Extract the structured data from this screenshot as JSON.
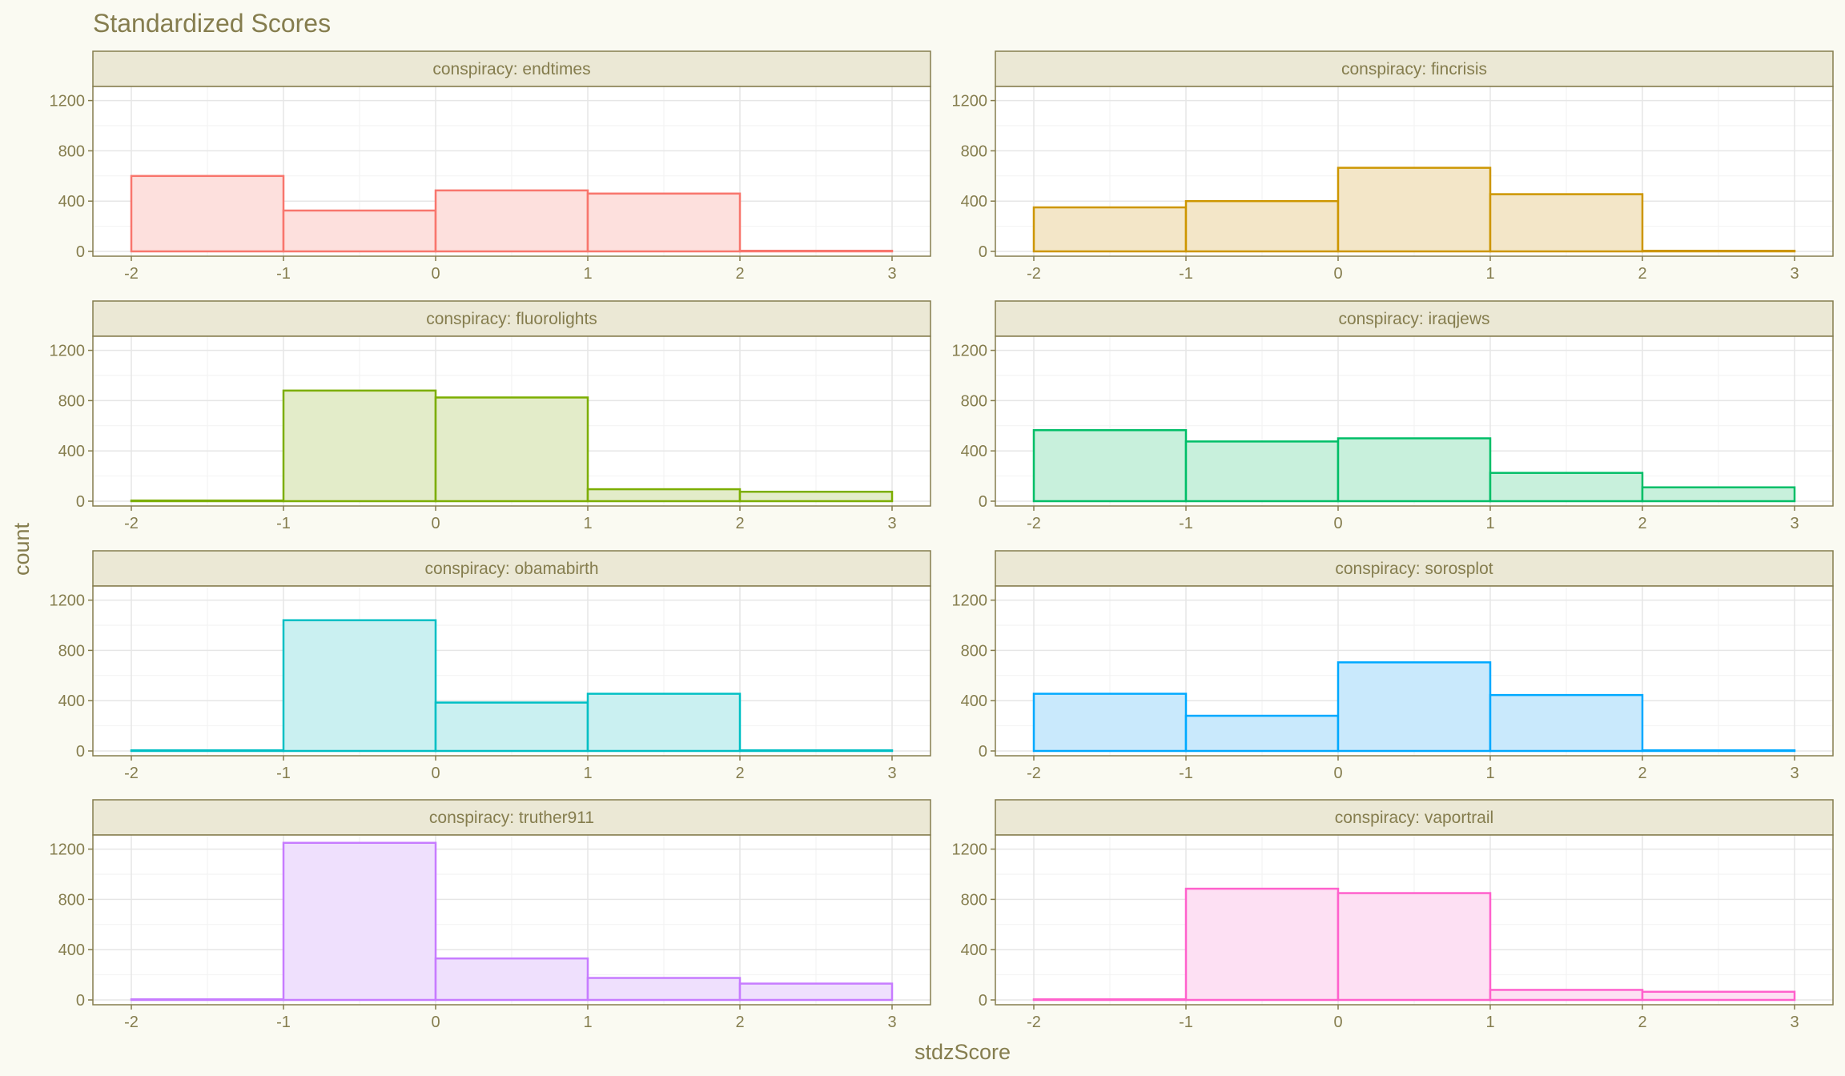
{
  "chart_data": {
    "type": "bar",
    "title": "Standardized Scores",
    "xlabel": "stdzScore",
    "ylabel": "count",
    "xlim": [
      -2,
      3
    ],
    "ylim": [
      0,
      1300
    ],
    "x_ticks": [
      "-2",
      "-1",
      "0",
      "1",
      "2",
      "3"
    ],
    "y_ticks": [
      "0",
      "400",
      "800",
      "1200"
    ],
    "bin_edges": [
      -2,
      -1,
      0,
      1,
      2,
      3
    ],
    "grid": true,
    "layout": "facet grid, 2 columns x 4 rows",
    "panels": [
      {
        "strip": "conspiracy: endtimes",
        "color": "#f8766d",
        "fill": "#fde0dd",
        "values": [
          600,
          325,
          485,
          460,
          5
        ]
      },
      {
        "strip": "conspiracy: fincrisis",
        "color": "#cd9600",
        "fill": "#f3e6c8",
        "values": [
          350,
          400,
          665,
          455,
          5
        ]
      },
      {
        "strip": "conspiracy: fluorolights",
        "color": "#7cae00",
        "fill": "#e3ecc9",
        "values": [
          5,
          880,
          825,
          95,
          75
        ]
      },
      {
        "strip": "conspiracy: iraqjews",
        "color": "#00be67",
        "fill": "#c8f0dc",
        "values": [
          565,
          475,
          500,
          225,
          110
        ]
      },
      {
        "strip": "conspiracy: obamabirth",
        "color": "#00bfc4",
        "fill": "#caf0f1",
        "values": [
          5,
          1040,
          385,
          455,
          5
        ]
      },
      {
        "strip": "conspiracy: sorosplot",
        "color": "#00a9ff",
        "fill": "#c9e9fc",
        "values": [
          455,
          280,
          705,
          445,
          5
        ]
      },
      {
        "strip": "conspiracy: truther911",
        "color": "#c77cff",
        "fill": "#efe0fd",
        "values": [
          5,
          1250,
          330,
          175,
          130
        ]
      },
      {
        "strip": "conspiracy: vaportrail",
        "color": "#ff61cc",
        "fill": "#fde0f3",
        "values": [
          5,
          885,
          850,
          80,
          65
        ]
      }
    ]
  }
}
